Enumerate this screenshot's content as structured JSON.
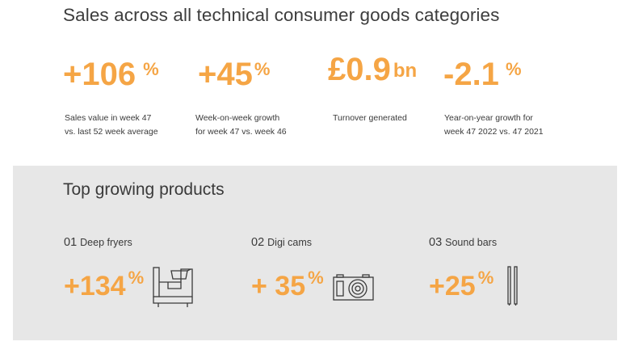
{
  "page": {
    "title": "Sales across all technical consumer goods categories"
  },
  "stats": [
    {
      "value": "+106",
      "unit": "%",
      "label_line1": "Sales value in week 47",
      "label_line2": "vs. last 52 week average"
    },
    {
      "value": "+45",
      "unit": "%",
      "label_line1": "Week-on-week growth",
      "label_line2": "for week 47 vs. week 46"
    },
    {
      "value": "£0.9",
      "unit": "bn",
      "label_line1": "Turnover generated",
      "label_line2": ""
    },
    {
      "value": "-2.1",
      "unit": "%",
      "label_line1": "Year-on-year growth for",
      "label_line2": "week 47 2022 vs. 47 2021"
    }
  ],
  "top_products": {
    "title": "Top growing products",
    "items": [
      {
        "number": "01",
        "name": "Deep fryers",
        "value": "+134",
        "unit": "%",
        "icon": "deep-fryer-icon"
      },
      {
        "number": "02",
        "name": "Digi cams",
        "value": "+ 35",
        "unit": "%",
        "icon": "camera-icon"
      },
      {
        "number": "03",
        "name": "Sound bars",
        "value": "+25",
        "unit": "%",
        "icon": "sound-bar-icon"
      }
    ]
  },
  "colors": {
    "accent": "#f5a545",
    "text": "#3a3a3a",
    "panel_bg": "#e7e7e7"
  }
}
